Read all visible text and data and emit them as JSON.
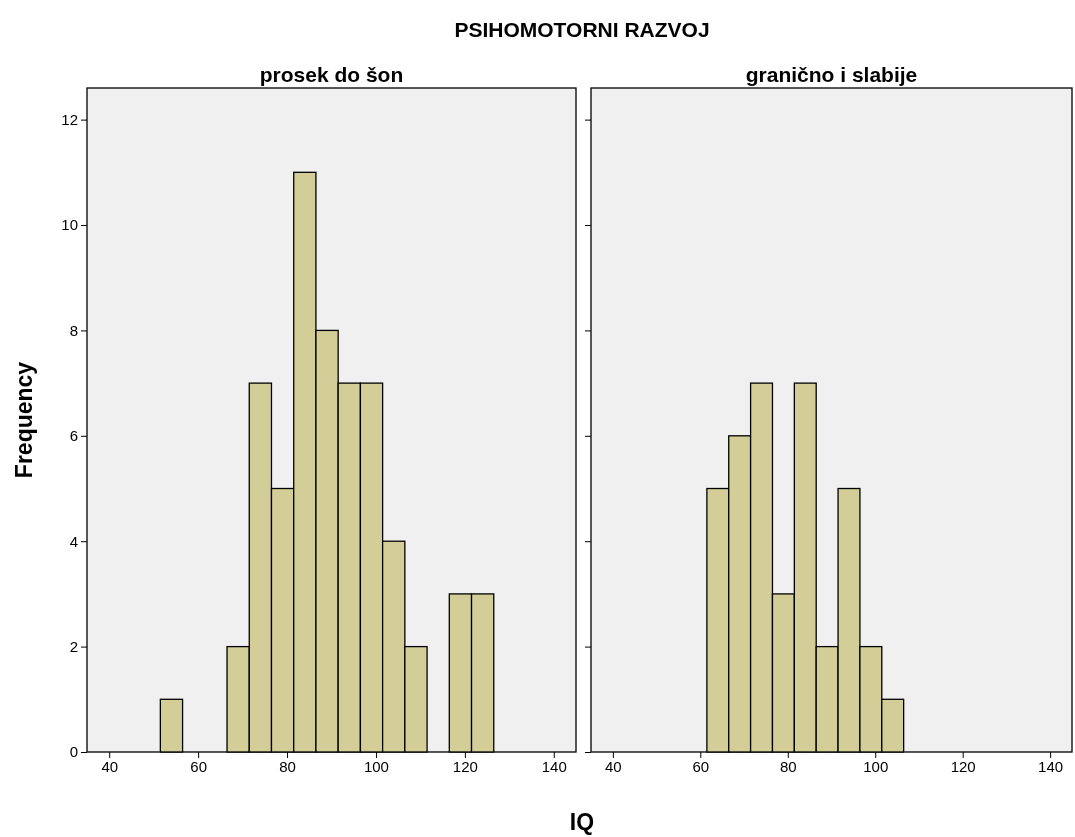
{
  "chart_data": [
    {
      "type": "histogram",
      "title": "PSIHOMOTORNI RAZVOJ",
      "subtitle": "prosek do šon",
      "xlabel": "IQ",
      "ylabel": "Frequency",
      "color": "#d3ce97",
      "bins": [
        51.5,
        56.5,
        61.5,
        66.5,
        71.5,
        76.5,
        81.5,
        86.5,
        91.5,
        96.5,
        101.5,
        106.5,
        111.5,
        116.5,
        121.5,
        126.5
      ],
      "values": [
        1,
        0,
        0,
        2,
        7,
        5,
        11,
        8,
        7,
        7,
        4,
        2,
        0,
        3,
        3
      ],
      "xlim": [
        35,
        145
      ],
      "xticks": [
        40,
        60,
        80,
        100,
        120,
        140
      ],
      "ylim": [
        0,
        12.6
      ],
      "yticks": [
        0,
        2,
        4,
        6,
        8,
        10,
        12
      ]
    },
    {
      "type": "histogram",
      "subtitle": "granično i slabije",
      "color": "#d3ce97",
      "bins": [
        61.5,
        66.5,
        71.5,
        76.5,
        81.5,
        86.5,
        91.5,
        96.5,
        101.5,
        106.5
      ],
      "values": [
        5,
        6,
        7,
        3,
        7,
        2,
        5,
        2,
        1
      ],
      "xlim": [
        35,
        145
      ],
      "xticks": [
        40,
        60,
        80,
        100,
        120,
        140
      ],
      "ylim": [
        0,
        12.6
      ],
      "yticks": [
        0,
        2,
        4,
        6,
        8,
        10,
        12
      ],
      "tick_labels": "x"
    }
  ]
}
